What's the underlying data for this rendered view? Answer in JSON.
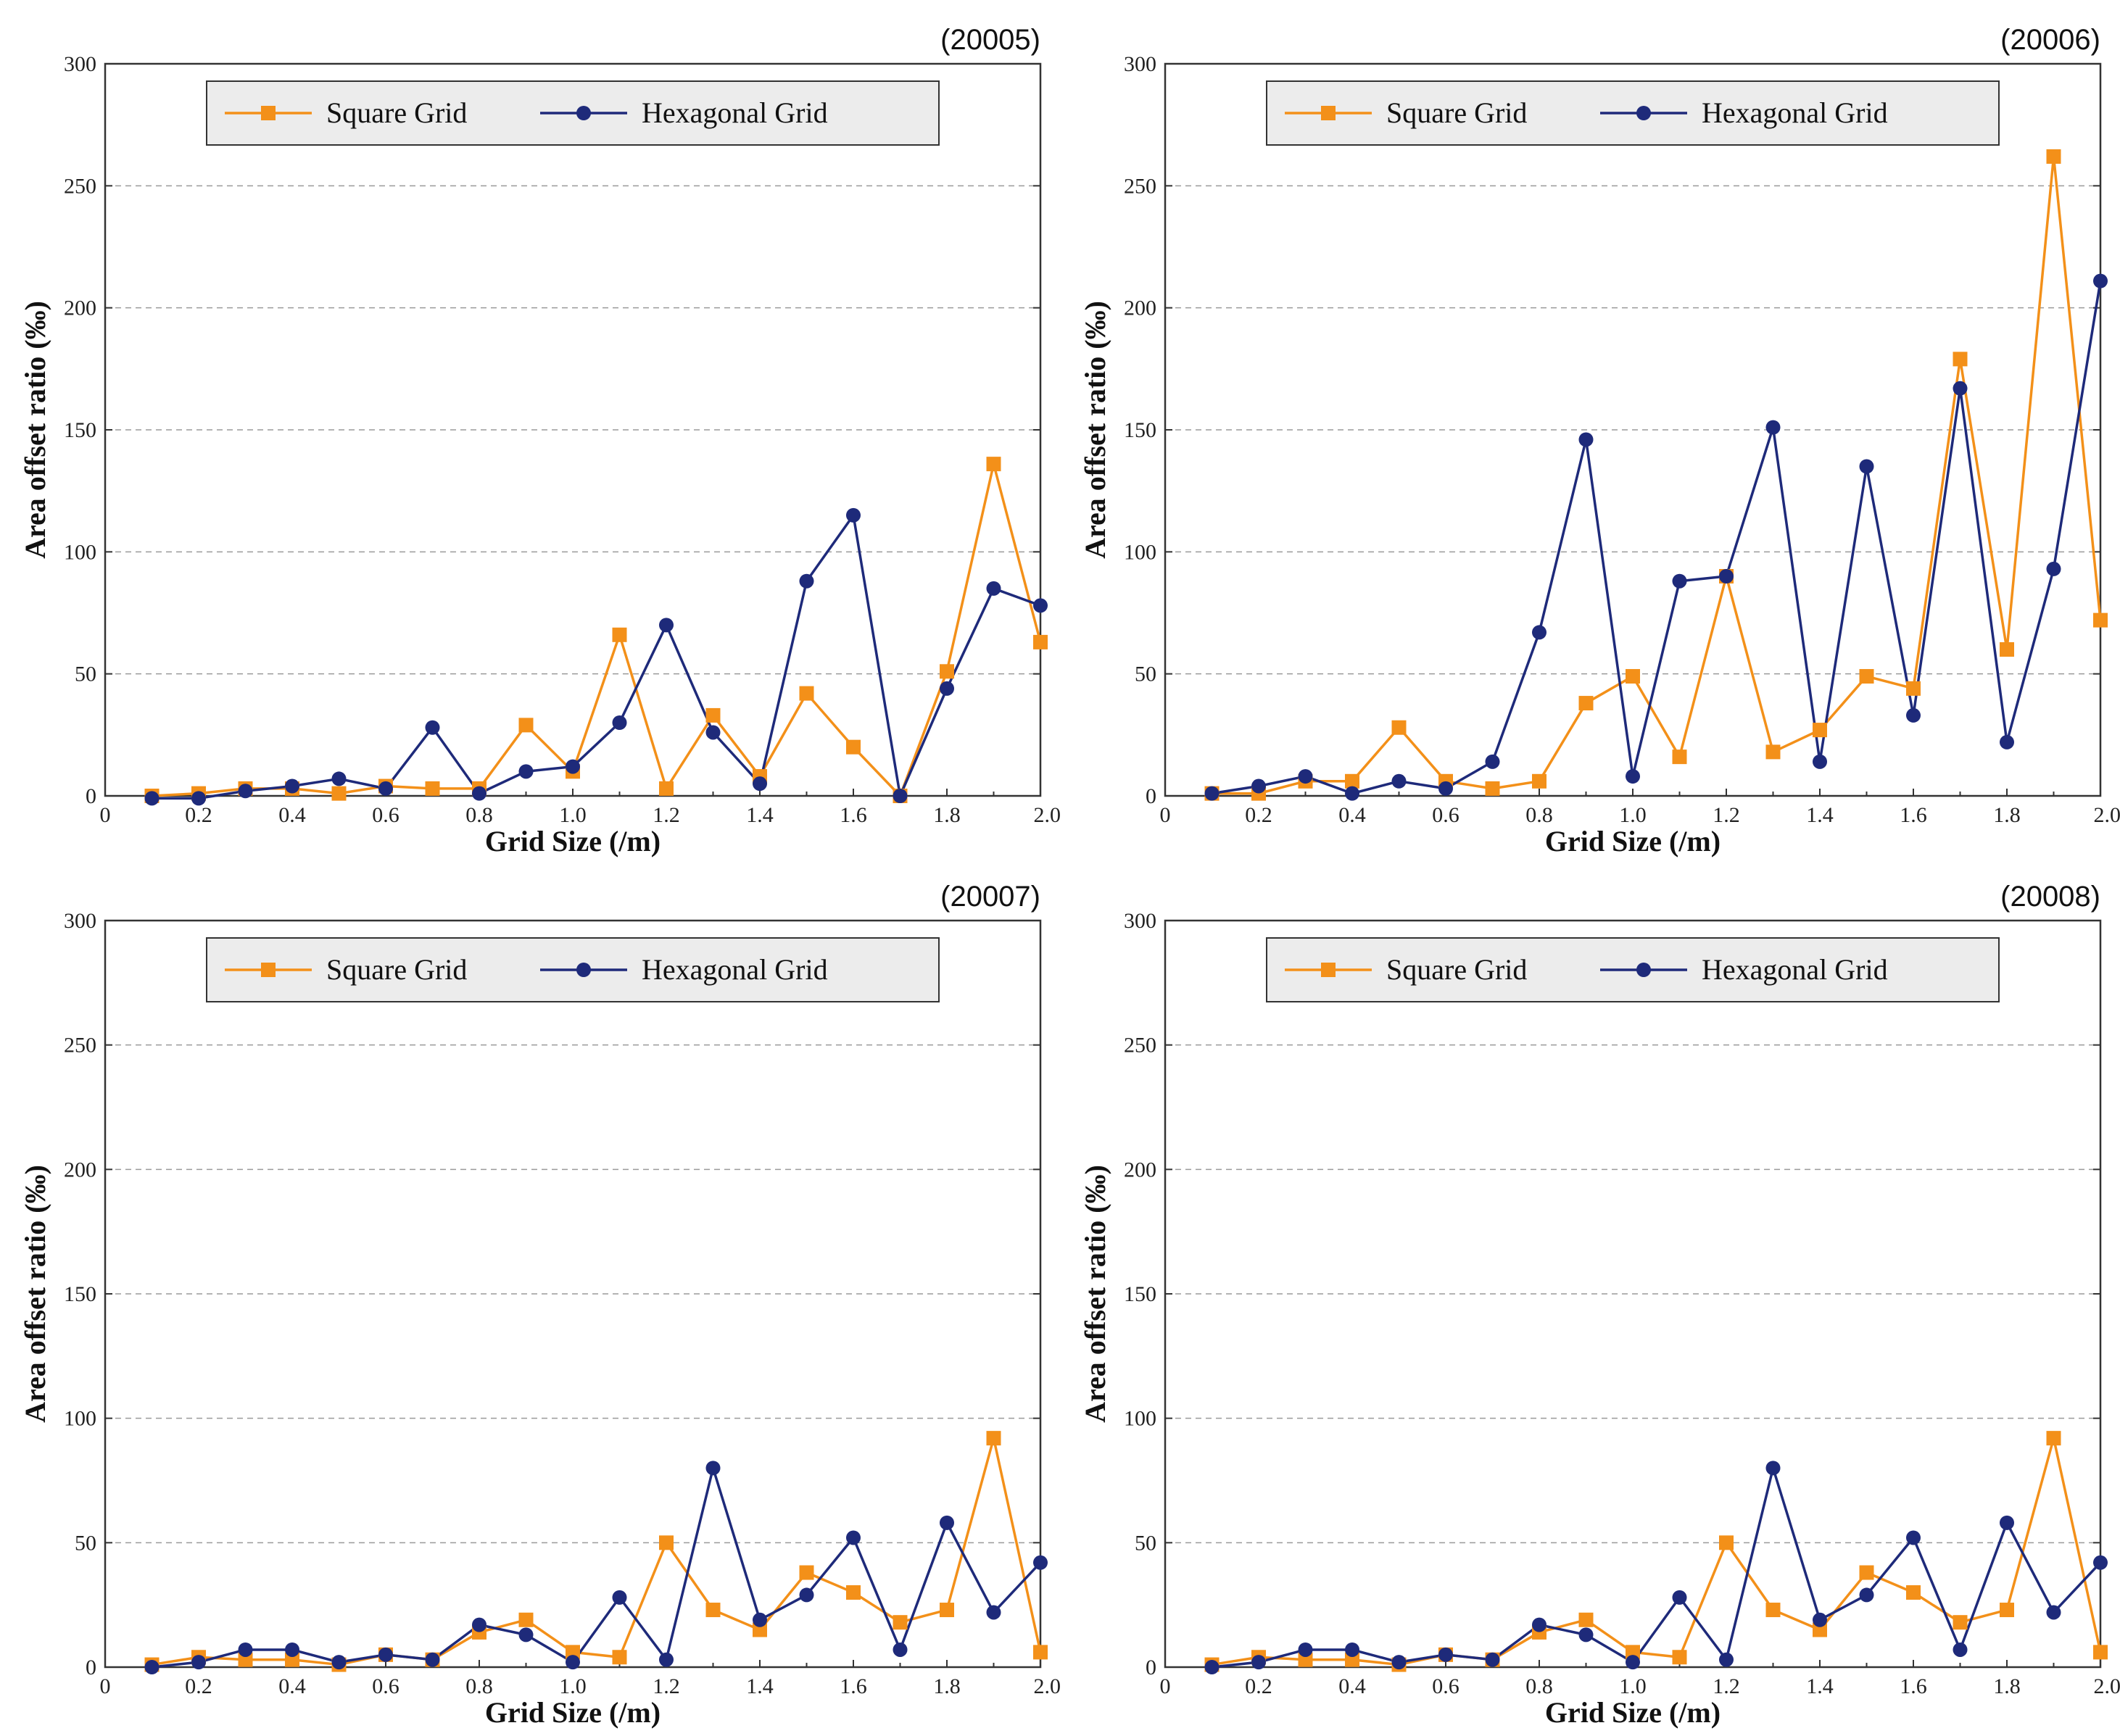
{
  "colors": {
    "square": "#F39019",
    "hex": "#1E2A7A"
  },
  "legend": {
    "square_label": "Square Grid",
    "hex_label": "Hexagonal Grid"
  },
  "chart_data": [
    {
      "type": "line",
      "id": "(20005)",
      "xlabel": "Grid Size (/m)",
      "ylabel": "Area offset ratio (‰)",
      "xlim": [
        0,
        2.0
      ],
      "ylim": [
        0,
        300
      ],
      "x_ticks": [
        "0",
        "0.2",
        "0.4",
        "0.6",
        "0.8",
        "1.0",
        "1.2",
        "1.4",
        "1.6",
        "1.8",
        "2.0"
      ],
      "y_ticks": [
        "0",
        "50",
        "100",
        "150",
        "200",
        "250",
        "300"
      ],
      "x": [
        0.1,
        0.2,
        0.3,
        0.4,
        0.5,
        0.6,
        0.7,
        0.8,
        0.9,
        1.0,
        1.1,
        1.2,
        1.3,
        1.4,
        1.5,
        1.6,
        1.7,
        1.8,
        1.9,
        2.0
      ],
      "series": [
        {
          "name": "Square Grid",
          "values": [
            0,
            1,
            3,
            3,
            1,
            4,
            3,
            3,
            29,
            10,
            66,
            3,
            33,
            8,
            42,
            20,
            0,
            51,
            136,
            63
          ]
        },
        {
          "name": "Hexagonal Grid",
          "values": [
            -1,
            -1,
            2,
            4,
            7,
            3,
            28,
            1,
            10,
            12,
            30,
            70,
            26,
            5,
            88,
            115,
            0,
            44,
            85,
            78
          ]
        }
      ]
    },
    {
      "type": "line",
      "id": "(20006)",
      "xlabel": "Grid Size (/m)",
      "ylabel": "Area offset ratio (‰)",
      "xlim": [
        0,
        2.0
      ],
      "ylim": [
        0,
        300
      ],
      "x_ticks": [
        "0",
        "0.2",
        "0.4",
        "0.6",
        "0.8",
        "1.0",
        "1.2",
        "1.4",
        "1.6",
        "1.8",
        "2.0"
      ],
      "y_ticks": [
        "0",
        "50",
        "100",
        "150",
        "200",
        "250",
        "300"
      ],
      "x": [
        0.1,
        0.2,
        0.3,
        0.4,
        0.5,
        0.6,
        0.7,
        0.8,
        0.9,
        1.0,
        1.1,
        1.2,
        1.3,
        1.4,
        1.5,
        1.6,
        1.7,
        1.8,
        1.9,
        2.0
      ],
      "series": [
        {
          "name": "Square Grid",
          "values": [
            1,
            1,
            6,
            6,
            28,
            6,
            3,
            6,
            38,
            49,
            16,
            90,
            18,
            27,
            49,
            44,
            179,
            60,
            262,
            72
          ]
        },
        {
          "name": "Hexagonal Grid",
          "values": [
            1,
            4,
            8,
            1,
            6,
            3,
            14,
            67,
            146,
            8,
            88,
            90,
            151,
            14,
            135,
            33,
            167,
            22,
            93,
            211
          ]
        }
      ]
    },
    {
      "type": "line",
      "id": "(20007)",
      "xlabel": "Grid Size (/m)",
      "ylabel": "Area offset ratio (‰)",
      "xlim": [
        0,
        2.0
      ],
      "ylim": [
        0,
        300
      ],
      "x_ticks": [
        "0",
        "0.2",
        "0.4",
        "0.6",
        "0.8",
        "1.0",
        "1.2",
        "1.4",
        "1.6",
        "1.8",
        "2.0"
      ],
      "y_ticks": [
        "0",
        "50",
        "100",
        "150",
        "200",
        "250",
        "300"
      ],
      "x": [
        0.1,
        0.2,
        0.3,
        0.4,
        0.5,
        0.6,
        0.7,
        0.8,
        0.9,
        1.0,
        1.1,
        1.2,
        1.3,
        1.4,
        1.5,
        1.6,
        1.7,
        1.8,
        1.9,
        2.0
      ],
      "series": [
        {
          "name": "Square Grid",
          "values": [
            1,
            4,
            3,
            3,
            1,
            5,
            3,
            14,
            19,
            6,
            4,
            50,
            23,
            15,
            38,
            30,
            18,
            23,
            92,
            6
          ]
        },
        {
          "name": "Hexagonal Grid",
          "values": [
            0,
            2,
            7,
            7,
            2,
            5,
            3,
            17,
            13,
            2,
            28,
            3,
            80,
            19,
            29,
            52,
            7,
            58,
            22,
            42
          ]
        }
      ]
    },
    {
      "type": "line",
      "id": "(20008)",
      "xlabel": "Grid Size (/m)",
      "ylabel": "Area offset ratio (‰)",
      "xlim": [
        0,
        2.0
      ],
      "ylim": [
        0,
        300
      ],
      "x_ticks": [
        "0",
        "0.2",
        "0.4",
        "0.6",
        "0.8",
        "1.0",
        "1.2",
        "1.4",
        "1.6",
        "1.8",
        "2.0"
      ],
      "y_ticks": [
        "0",
        "50",
        "100",
        "150",
        "200",
        "250",
        "300"
      ],
      "x": [
        0.1,
        0.2,
        0.3,
        0.4,
        0.5,
        0.6,
        0.7,
        0.8,
        0.9,
        1.0,
        1.1,
        1.2,
        1.3,
        1.4,
        1.5,
        1.6,
        1.7,
        1.8,
        1.9,
        2.0
      ],
      "series": [
        {
          "name": "Square Grid",
          "values": [
            1,
            4,
            3,
            3,
            1,
            5,
            3,
            14,
            19,
            6,
            4,
            50,
            23,
            15,
            38,
            30,
            18,
            23,
            92,
            6
          ]
        },
        {
          "name": "Hexagonal Grid",
          "values": [
            0,
            2,
            7,
            7,
            2,
            5,
            3,
            17,
            13,
            2,
            28,
            3,
            80,
            19,
            29,
            52,
            7,
            58,
            22,
            42
          ]
        }
      ]
    }
  ]
}
